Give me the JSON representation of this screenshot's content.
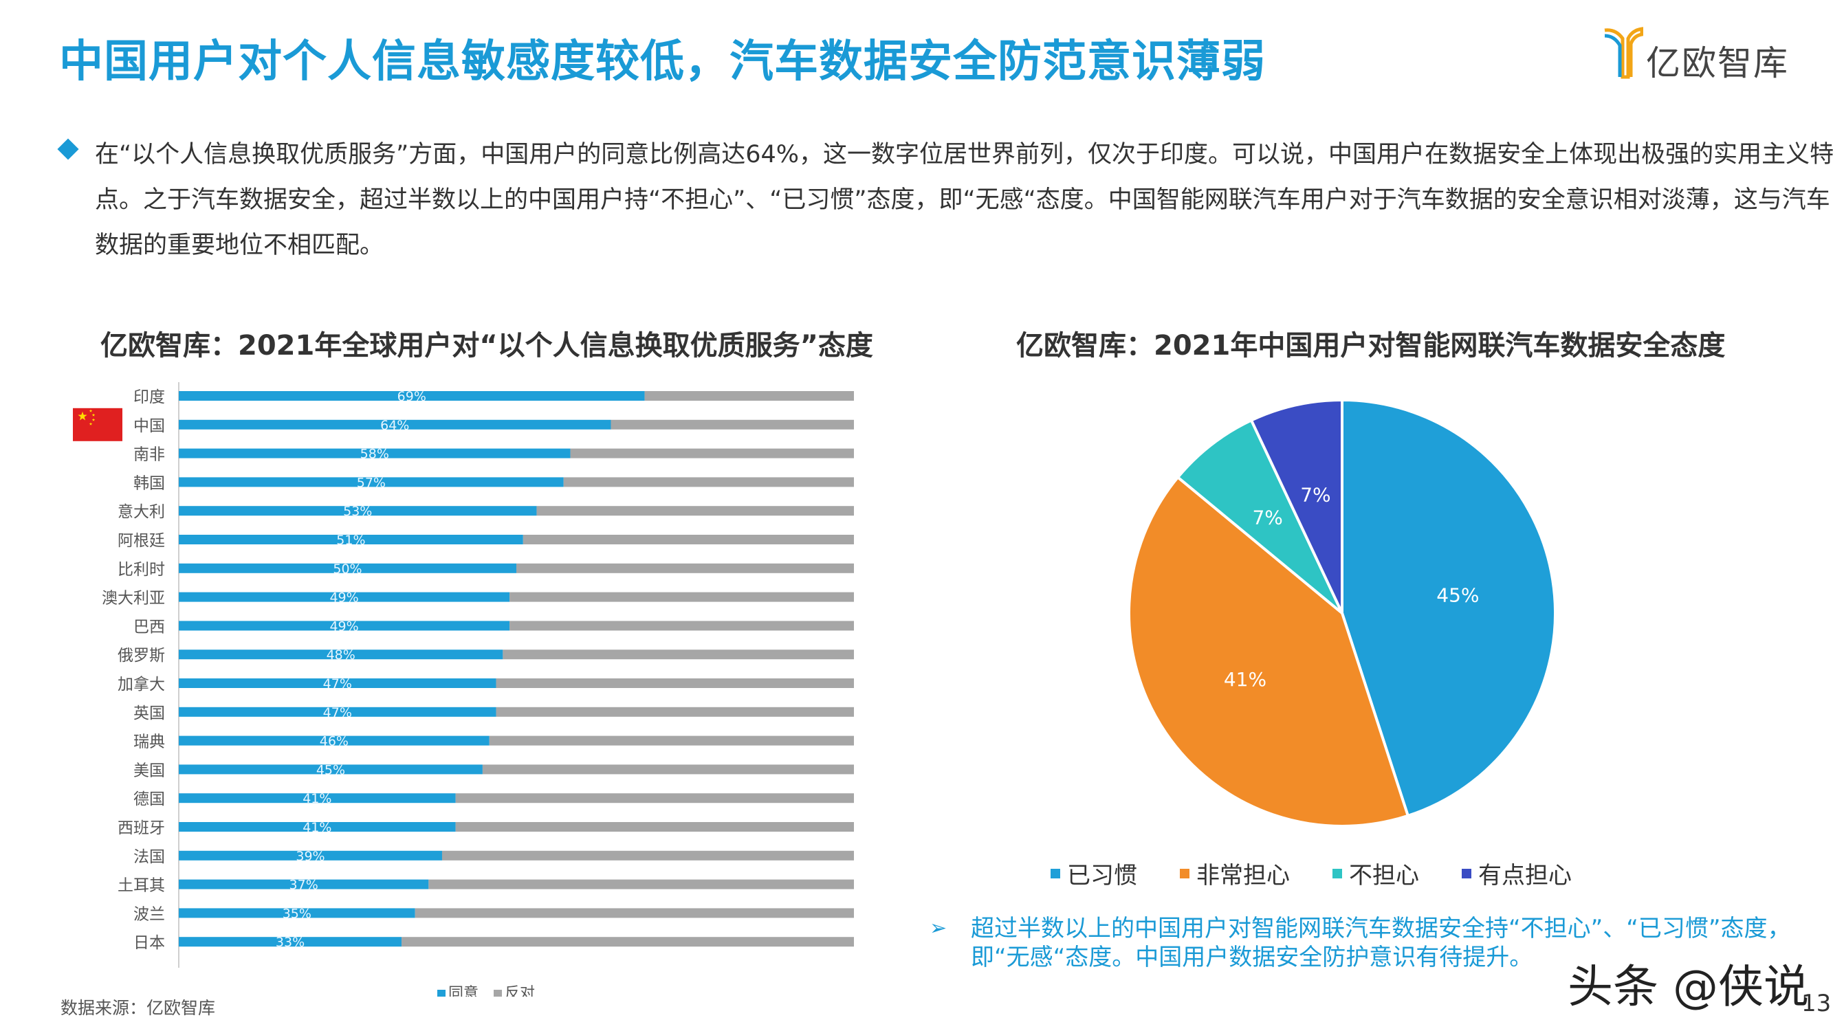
{
  "header": {
    "title": "中国用户对个人信息敏感度较低，汽车数据安全防范意识薄弱",
    "logo_text": "亿欧智库"
  },
  "intro": {
    "text": "在“以个人信息换取优质服务”方面，中国用户的同意比例高达64%，这一数字位居世界前列，仅次于印度。可以说，中国用户在数据安全上体现出极强的实用主义特点。之于汽车数据安全，超过半数以上的中国用户持“不担心”、“已习惯”态度，即“无感“态度。中国智能网联汽车用户对于汽车数据的安全意识相对淡薄，这与汽车数据的重要地位不相匹配。"
  },
  "colors": {
    "accent": "#1a9ad6",
    "bar_agree": "#1f9fd8",
    "bar_oppose": "#a6a6a6",
    "flag_red": "#e02020",
    "flag_star": "#ffde00"
  },
  "chart_data": [
    {
      "type": "bar",
      "orientation": "horizontal",
      "stacked": true,
      "title": "亿欧智库：2021年全球用户对“以个人信息换取优质服务”态度",
      "categories": [
        "印度",
        "中国",
        "南非",
        "韩国",
        "意大利",
        "阿根廷",
        "比利时",
        "澳大利亚",
        "巴西",
        "俄罗斯",
        "加拿大",
        "英国",
        "瑞典",
        "美国",
        "德国",
        "西班牙",
        "法国",
        "土耳其",
        "波兰",
        "日本"
      ],
      "series": [
        {
          "name": "同意",
          "color": "#1f9fd8",
          "values": [
            69,
            64,
            58,
            57,
            53,
            51,
            50,
            49,
            49,
            48,
            47,
            47,
            46,
            45,
            41,
            41,
            39,
            37,
            35,
            33
          ]
        },
        {
          "name": "反对",
          "color": "#a6a6a6",
          "values": [
            31,
            36,
            42,
            43,
            47,
            49,
            50,
            51,
            51,
            52,
            53,
            53,
            54,
            55,
            59,
            59,
            61,
            63,
            65,
            67
          ]
        }
      ],
      "data_labels": [
        "69%",
        "64%",
        "58%",
        "57%",
        "53%",
        "51%",
        "50%",
        "49%",
        "49%",
        "48%",
        "47%",
        "47%",
        "46%",
        "45%",
        "41%",
        "41%",
        "39%",
        "37%",
        "35%",
        "33%"
      ],
      "xlim": [
        0,
        100
      ],
      "legend": "bottom",
      "highlight_category": "中国",
      "highlight_icon": "china-flag-icon"
    },
    {
      "type": "pie",
      "title": "亿欧智库：2021年中国用户对智能网联汽车数据安全态度",
      "labels": [
        "已习惯",
        "非常担心",
        "不担心",
        "有点担心"
      ],
      "values": [
        45,
        41,
        7,
        7
      ],
      "data_labels": [
        "45%",
        "41%",
        "7%",
        "7%"
      ],
      "colors": [
        "#1f9fd8",
        "#f28c28",
        "#2ec4c4",
        "#3a4cc4"
      ],
      "legend": "bottom"
    }
  ],
  "note": {
    "arrow": "➢",
    "text": "超过半数以上的中国用户对智能网联汽车数据安全持“不担心”、“已习惯”态度，即“无感“态度。中国用户数据安全防护意识有待提升。"
  },
  "footer": {
    "source": "数据来源：亿欧智库",
    "watermark": "头条 @侠说",
    "page_number": "13"
  }
}
